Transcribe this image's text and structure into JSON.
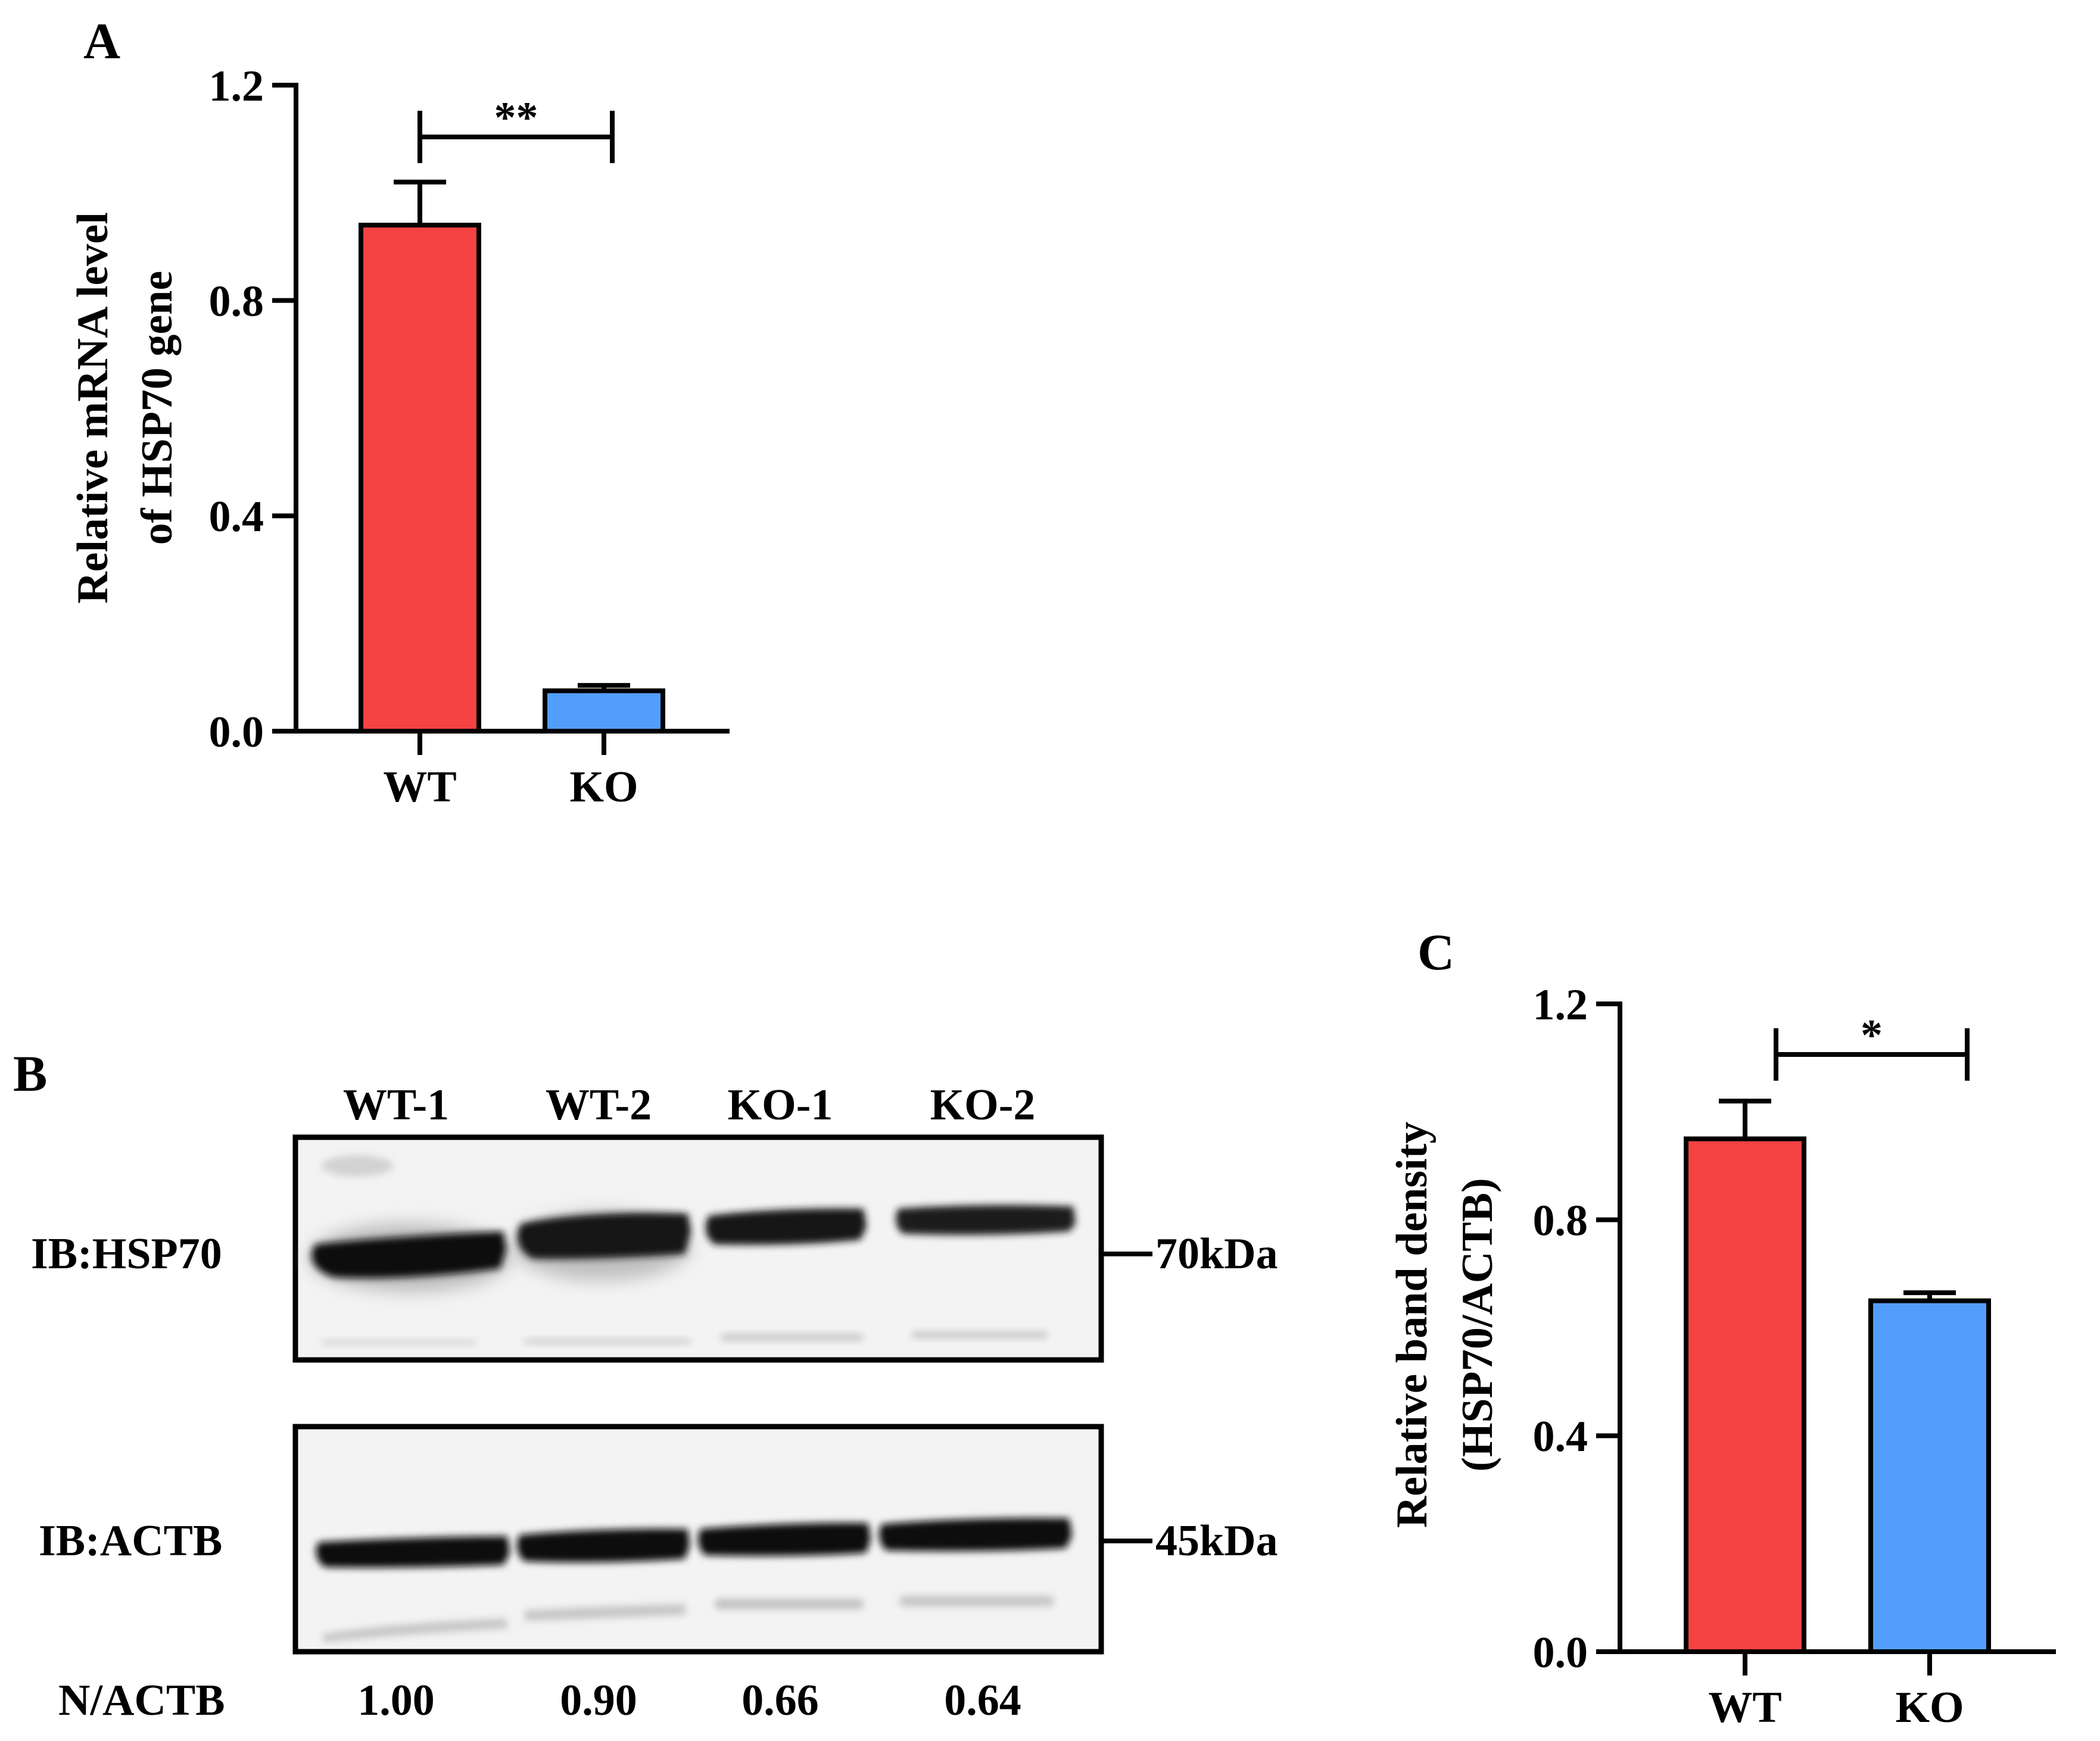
{
  "colors": {
    "wt": "#f54242",
    "ko": "#529efc",
    "axis": "#000000"
  },
  "panels": {
    "a": {
      "letter": "A"
    },
    "b": {
      "letter": "B",
      "lanes": [
        "WT-1",
        "WT-2",
        "KO-1",
        "KO-2"
      ],
      "blots": [
        {
          "label": "IB:HSP70",
          "marker": "70kDa"
        },
        {
          "label": "IB:ACTB",
          "marker": "45kDa"
        }
      ],
      "ratio_label": "N/ACTB",
      "ratios": [
        "1.00",
        "0.90",
        "0.66",
        "0.64"
      ]
    },
    "c": {
      "letter": "C"
    }
  },
  "chart_data": [
    {
      "panel": "A",
      "type": "bar",
      "categories": [
        "WT",
        "KO"
      ],
      "values": [
        0.94,
        0.075
      ],
      "errors": [
        0.08,
        0.01
      ],
      "ylabel_lines": [
        "Relative mRNA level",
        "of HSP70 gene"
      ],
      "ylim": [
        0,
        1.2
      ],
      "yticks": [
        "0.0",
        "0.4",
        "0.8",
        "1.2"
      ],
      "significance": "**"
    },
    {
      "panel": "C",
      "type": "bar",
      "categories": [
        "WT",
        "KO"
      ],
      "values": [
        0.95,
        0.65
      ],
      "errors": [
        0.07,
        0.015
      ],
      "ylabel_lines": [
        "Relative band density",
        "(HSP70/ACTB)"
      ],
      "ylim": [
        0,
        1.2
      ],
      "yticks": [
        "0.0",
        "0.4",
        "0.8",
        "1.2"
      ],
      "significance": "*"
    }
  ]
}
